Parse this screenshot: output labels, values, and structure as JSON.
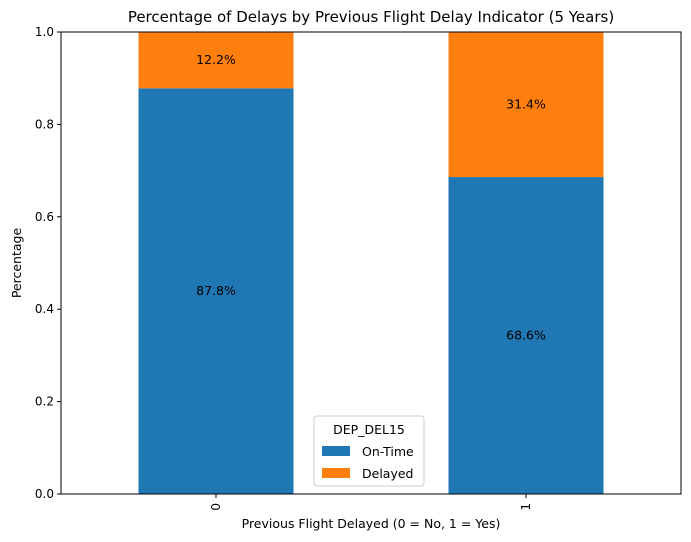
{
  "chart_data": {
    "type": "bar",
    "stacked": true,
    "title": "Percentage of Delays by Previous Flight Delay Indicator (5 Years)",
    "xlabel": "Previous Flight Delayed (0 = No, 1 = Yes)",
    "ylabel": "Percentage",
    "categories": [
      "0",
      "1"
    ],
    "series": [
      {
        "name": "On-Time",
        "values": [
          0.878,
          0.686
        ],
        "labels": [
          "87.8%",
          "68.6%"
        ],
        "color": "#1f77b4"
      },
      {
        "name": "Delayed",
        "values": [
          0.122,
          0.314
        ],
        "labels": [
          "12.2%",
          "31.4%"
        ],
        "color": "#ff7f0e"
      }
    ],
    "ylim": [
      0,
      1.0
    ],
    "yticks": [
      0.0,
      0.2,
      0.4,
      0.6,
      0.8,
      1.0
    ],
    "ytick_labels": [
      "0.0",
      "0.2",
      "0.4",
      "0.6",
      "0.8",
      "1.0"
    ],
    "legend": {
      "title": "DEP_DEL15",
      "placement": "bottom-center"
    },
    "grid": false
  }
}
